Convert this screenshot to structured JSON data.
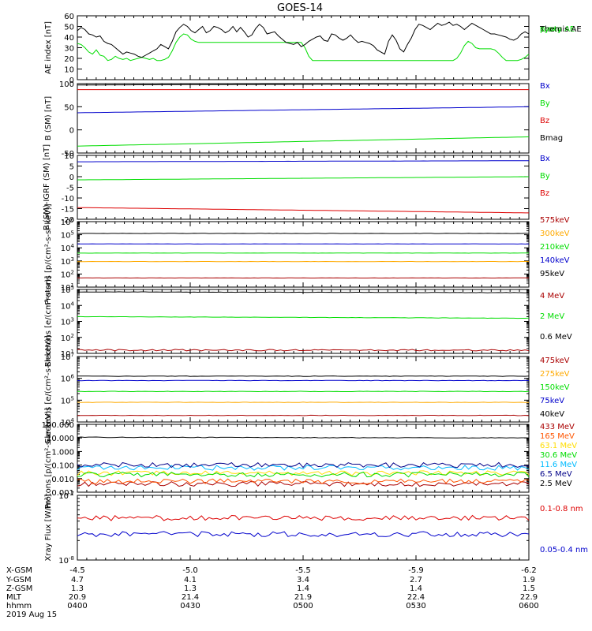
{
  "title": "GOES-14",
  "chart_data": [
    {
      "type": "line",
      "ylabel": "AE index [nT]",
      "ylim": [
        0,
        60
      ],
      "yticks": [
        "0",
        "10",
        "20",
        "30",
        "40",
        "50",
        "60"
      ],
      "scale": "linear",
      "series": [
        {
          "name": "Kyoto",
          "color": "#00dd00",
          "values": []
        },
        {
          "name": "proxy AE",
          "color": "#00dd00",
          "values": [
            34,
            33,
            30,
            26,
            24,
            28,
            23,
            22,
            18,
            19,
            22,
            20,
            19,
            20,
            18,
            19,
            20,
            21,
            20,
            19,
            20,
            18,
            18,
            19,
            21,
            27,
            35,
            40,
            43,
            42,
            38,
            36,
            35,
            35,
            35,
            35,
            35,
            35,
            35,
            35,
            35,
            35,
            35,
            35,
            35,
            35,
            35,
            35,
            35,
            35,
            35,
            35,
            35,
            35,
            35,
            35,
            35,
            35,
            35,
            35,
            30,
            22,
            18,
            18,
            18,
            18,
            18,
            18,
            18,
            18,
            18,
            18,
            18,
            18,
            18,
            18,
            18,
            18,
            18,
            18,
            18,
            18,
            18,
            18,
            18,
            18,
            18,
            18,
            18,
            18,
            18,
            18,
            18,
            18,
            18,
            18,
            18,
            18,
            18,
            18,
            20,
            25,
            32,
            36,
            34,
            30,
            29,
            29,
            29,
            29,
            28,
            25,
            21,
            18,
            18,
            18,
            18,
            19,
            21,
            24
          ]
        },
        {
          "name": "Themis AE",
          "color": "#000000",
          "values": [
            46,
            49,
            47,
            43,
            42,
            40,
            41,
            36,
            34,
            33,
            30,
            27,
            24,
            26,
            25,
            24,
            22,
            21,
            23,
            25,
            27,
            29,
            33,
            31,
            29,
            36,
            45,
            49,
            52,
            50,
            46,
            44,
            47,
            50,
            44,
            46,
            50,
            49,
            47,
            44,
            46,
            50,
            45,
            49,
            45,
            40,
            42,
            48,
            52,
            49,
            43,
            44,
            45,
            41,
            38,
            35,
            34,
            33,
            35,
            31,
            33,
            36,
            38,
            40,
            41,
            37,
            36,
            43,
            42,
            39,
            37,
            39,
            42,
            38,
            35,
            36,
            35,
            34,
            32,
            28,
            26,
            24,
            36,
            42,
            37,
            29,
            26,
            33,
            39,
            47,
            52,
            51,
            49,
            47,
            50,
            53,
            51,
            52,
            54,
            51,
            52,
            50,
            47,
            50,
            53,
            51,
            49,
            47,
            45,
            43,
            43,
            42,
            41,
            40,
            38,
            37,
            39,
            43,
            45,
            43
          ]
        }
      ]
    },
    {
      "type": "line",
      "ylabel": "B (SM) [nT]",
      "ylim": [
        -50,
        100
      ],
      "yticks": [
        "-50",
        "0",
        "50",
        "100"
      ],
      "scale": "linear",
      "series": [
        {
          "name": "Bx",
          "color": "#0000cc",
          "start": 37,
          "end": 50
        },
        {
          "name": "By",
          "color": "#00dd00",
          "start": -35,
          "end": -15
        },
        {
          "name": "Bz",
          "color": "#dd0000",
          "start": 87,
          "end": 87
        },
        {
          "name": "Bmag",
          "color": "#000000",
          "start": 97,
          "end": 100
        }
      ]
    },
    {
      "type": "line",
      "ylabel": "B (SM)-IGRF (SM) [nT]",
      "ylim": [
        -20,
        10
      ],
      "yticks": [
        "-20",
        "-15",
        "-10",
        "-5",
        "0",
        "5",
        "10"
      ],
      "scale": "linear",
      "series": [
        {
          "name": "Bx",
          "color": "#0000cc",
          "start": 7,
          "end": 7.5
        },
        {
          "name": "By",
          "color": "#00dd00",
          "start": -1.5,
          "end": 0
        },
        {
          "name": "Bz",
          "color": "#dd0000",
          "start": -14.5,
          "end": -17
        }
      ]
    },
    {
      "type": "line",
      "ylabel": "Protons [p/(cm²-s-sr-keV)]",
      "ylim": [
        1,
        6
      ],
      "yticks": [
        "1",
        "2",
        "3",
        "4",
        "5",
        "6"
      ],
      "scale": "log",
      "series": [
        {
          "name": "575keV",
          "color": "#aa0000",
          "start": 1.7,
          "end": 1.7
        },
        {
          "name": "300keV",
          "color": "#ffaa00",
          "start": 2.95,
          "end": 2.95
        },
        {
          "name": "210keV",
          "color": "#00dd00",
          "start": 3.6,
          "end": 3.6
        },
        {
          "name": "140keV",
          "color": "#0000cc",
          "start": 4.3,
          "end": 4.3
        },
        {
          "name": "95keV",
          "color": "#000000",
          "start": 5.1,
          "end": 5.1
        }
      ]
    },
    {
      "type": "line",
      "ylabel": "Electrons [e/(cm²-s-sr)]",
      "ylim": [
        1,
        5
      ],
      "yticks": [
        "1",
        "2",
        "3",
        "4",
        "5"
      ],
      "scale": "log",
      "series": [
        {
          "name": "4 MeV",
          "color": "#aa0000",
          "start": 1.2,
          "end": 1.2
        },
        {
          "name": "2 MeV",
          "color": "#00dd00",
          "start": 3.3,
          "end": 3.2
        },
        {
          "name": "0.6 MeV",
          "color": "#000000",
          "start": 4.85,
          "end": 4.8
        }
      ]
    },
    {
      "type": "line",
      "ylabel": "Electrons [e/(cm²-s-sr-keV)]",
      "ylim": [
        4,
        7
      ],
      "yticks": [
        "4",
        "5",
        "6",
        "7"
      ],
      "scale": "log",
      "series": [
        {
          "name": "475keV",
          "color": "#aa0000",
          "start": 4.3,
          "end": 4.3
        },
        {
          "name": "275keV",
          "color": "#ffaa00",
          "start": 4.9,
          "end": 4.9
        },
        {
          "name": "150keV",
          "color": "#00dd00",
          "start": 5.4,
          "end": 5.4
        },
        {
          "name": "75keV",
          "color": "#0000cc",
          "start": 5.9,
          "end": 5.9
        },
        {
          "name": "40keV",
          "color": "#000000",
          "start": 6.1,
          "end": 6.1
        }
      ]
    },
    {
      "type": "line",
      "ylabel": "Protons [p/(cm²-s-sr-keV)]",
      "ylim": [
        -3,
        2
      ],
      "yticks": [
        "0.001",
        "0.010",
        "0.100",
        "1.000",
        "10.000",
        "100.000"
      ],
      "scale": "log",
      "series": [
        {
          "name": "433 MeV",
          "color": "#aa0000",
          "start": -2.4,
          "end": -2.4
        },
        {
          "name": "165 MeV",
          "color": "#ff5500",
          "start": -2.2,
          "end": -2.2
        },
        {
          "name": "63.1 MeV",
          "color": "#ffdd00",
          "start": -1.6,
          "end": -1.6
        },
        {
          "name": "30.6 MeV",
          "color": "#00dd00",
          "start": -1.7,
          "end": -1.7
        },
        {
          "name": "11.6 MeV",
          "color": "#00bbff",
          "start": -1.2,
          "end": -1.2
        },
        {
          "name": "6.5 MeV",
          "color": "#000088",
          "start": -1.0,
          "end": -1.0
        },
        {
          "name": "2.5 MeV",
          "color": "#000000",
          "start": 1.05,
          "end": 1.0
        }
      ]
    },
    {
      "type": "line",
      "ylabel": "Xray Flux [W/m²]",
      "ylim": [
        -8,
        -7
      ],
      "yticks": [
        "-8",
        "-7"
      ],
      "scale": "log",
      "series": [
        {
          "name": "0.1-0.8 nm",
          "color": "#dd0000",
          "start": -7.35,
          "end": -7.35
        },
        {
          "name": "0.05-0.4 nm",
          "color": "#0000cc",
          "start": -7.6,
          "end": -7.6
        }
      ]
    }
  ],
  "x_axis": {
    "row_labels": [
      "X-GSM",
      "Y-GSM",
      "Z-GSM",
      "MLT",
      "hhmm"
    ],
    "columns": [
      [
        "-4.5",
        "4.7",
        "1.3",
        "20.9",
        "0400"
      ],
      [
        "-5.0",
        "4.1",
        "1.3",
        "21.4",
        "0430"
      ],
      [
        "-5.5",
        "3.4",
        "1.4",
        "21.9",
        "0500"
      ],
      [
        "-5.9",
        "2.7",
        "1.4",
        "22.4",
        "0530"
      ],
      [
        "-6.2",
        "1.9",
        "1.5",
        "22.9",
        "0600"
      ]
    ],
    "date": "2019 Aug 15"
  }
}
